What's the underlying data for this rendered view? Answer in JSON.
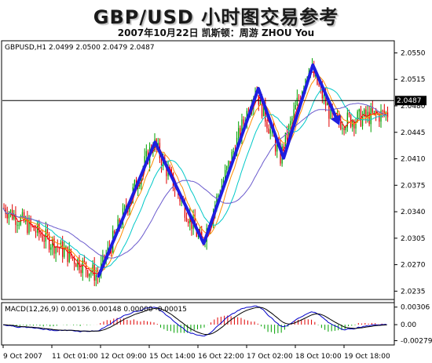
{
  "header": {
    "title": "GBP/USD 小时图交易参考",
    "subtitle": "2007年10月22日 凯斯顿：周游 ZHOU You"
  },
  "chart_data": [
    {
      "type": "candlestick",
      "info_label": "GBPUSD,H1  2.0499 2.0500 2.0479 2.0487",
      "y_ticks": [
        2.055,
        2.0515,
        2.048,
        2.0445,
        2.041,
        2.0375,
        2.034,
        2.0305,
        2.027,
        2.0235
      ],
      "ylim": [
        2.0225,
        2.0565
      ],
      "current_price": 2.0487,
      "current_price_label": "2.0487",
      "x_ticks": [
        "9 Oct 2007",
        "11 Oct 01:00",
        "12 Oct 09:00",
        "15 Oct 14:00",
        "16 Oct 22:00",
        "17 Oct 02:00",
        "18 Oct 10:00",
        "19 Oct 18:00"
      ],
      "analysis_path": [
        {
          "t": 0.245,
          "price": 2.0255
        },
        {
          "t": 0.39,
          "price": 2.0432
        },
        {
          "t": 0.515,
          "price": 2.0298
        },
        {
          "t": 0.655,
          "price": 2.0503
        },
        {
          "t": 0.72,
          "price": 2.0411
        },
        {
          "t": 0.795,
          "price": 2.0534
        },
        {
          "t": 0.86,
          "price": 2.0458
        }
      ],
      "colors": {
        "bull": "#00a000",
        "bear": "#e00000",
        "path": "#1e1ee0",
        "ma_fast": "#ff0000",
        "ma_mid": "#ff8c00",
        "ma_slow": "#00c8c8",
        "ma_long": "#6a5acd"
      }
    },
    {
      "type": "bar",
      "label": "MACD(12,26,9) 0.00136 0.00148 0.00000 -0.00015",
      "y_ticks": [
        0.00306,
        0.0,
        -0.00279
      ],
      "y_tick_labels": [
        "0.00306",
        "0.00",
        "-0.00279"
      ],
      "ylim": [
        -0.0034,
        0.0037
      ],
      "colors": {
        "hist_pos": "#e00000",
        "hist_neg": "#00a000",
        "macd": "#0000c8",
        "signal": "#000000"
      }
    }
  ]
}
